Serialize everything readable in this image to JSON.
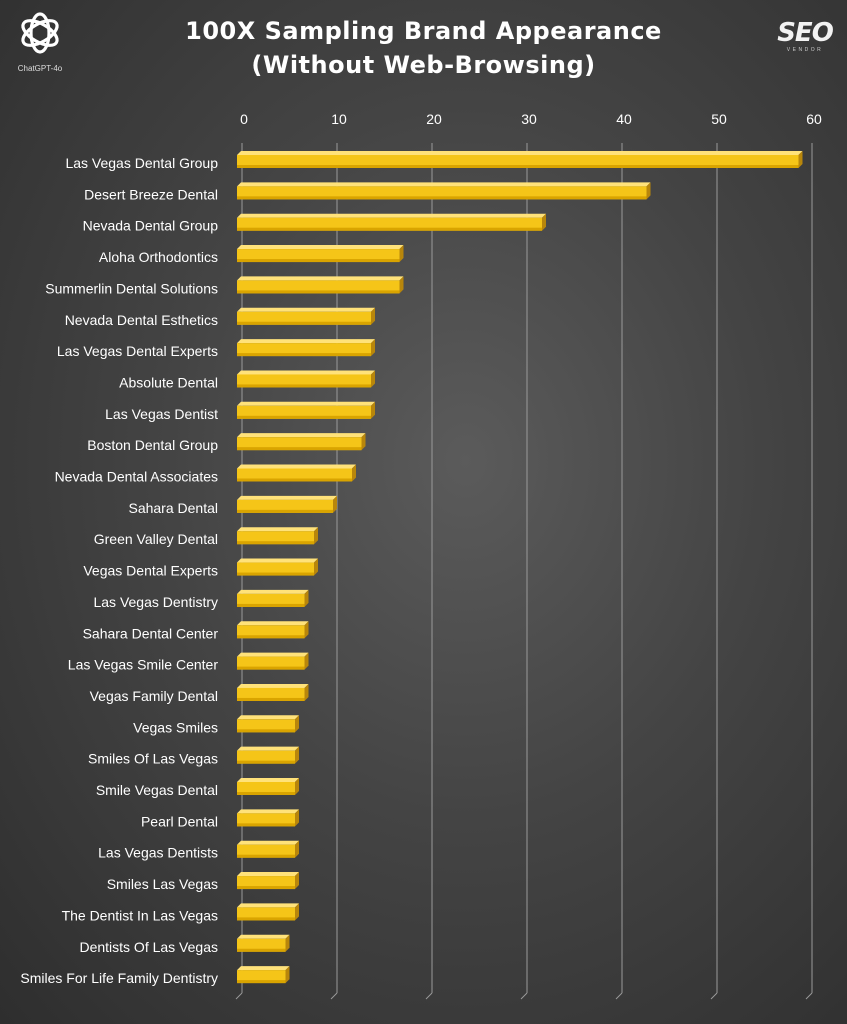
{
  "logos": {
    "left_caption": "ChatGPT-4o",
    "left_icon": "openai-knot-icon",
    "right_text": "SEO",
    "right_subtext": "VENDOR"
  },
  "chart_data": {
    "type": "bar",
    "orientation": "horizontal",
    "title": "100X Sampling Brand Appearance",
    "subtitle": "(Without Web-Browsing)",
    "xlim": [
      0,
      60
    ],
    "xticks": [
      0,
      10,
      20,
      30,
      40,
      50,
      60
    ],
    "x_axis_position": "top",
    "grid": true,
    "bar_color": "#f5c518",
    "categories": [
      "Las Vegas Dental Group",
      "Desert Breeze Dental",
      "Nevada Dental Group",
      "Aloha Orthodontics",
      "Summerlin Dental Solutions",
      "Nevada Dental Esthetics",
      "Las Vegas Dental Experts",
      "Absolute Dental",
      "Las Vegas Dentist",
      "Boston Dental Group",
      "Nevada Dental Associates",
      "Sahara Dental",
      "Green Valley Dental",
      "Vegas Dental Experts",
      "Las Vegas Dentistry",
      "Sahara Dental Center",
      "Las Vegas Smile Center",
      "Vegas Family Dental",
      "Vegas Smiles",
      "Smiles Of Las Vegas",
      "Smile Vegas Dental",
      "Pearl Dental",
      "Las Vegas Dentists",
      "Smiles Las Vegas",
      "The Dentist In Las Vegas",
      "Dentists Of Las Vegas",
      "Smiles For Life Family Dentistry"
    ],
    "values": [
      59,
      43,
      32,
      17,
      17,
      14,
      14,
      14,
      14,
      13,
      12,
      10,
      8,
      8,
      7,
      7,
      7,
      7,
      6,
      6,
      6,
      6,
      6,
      6,
      6,
      5,
      5
    ]
  }
}
